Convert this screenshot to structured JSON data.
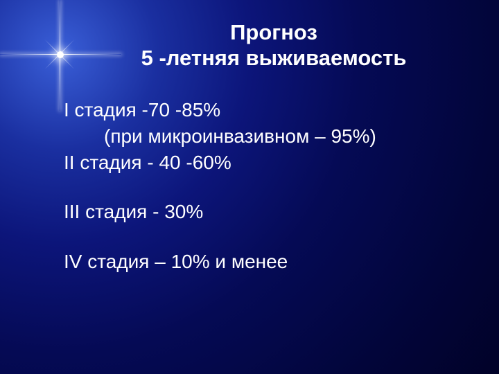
{
  "colors": {
    "text": "#ffffff",
    "bg_center": "#3a5fd8",
    "bg_edge": "#010228"
  },
  "title": {
    "line1": "Прогноз",
    "line2": "5 -летняя выживаемость",
    "font_size_pt": 23,
    "font_weight": "bold"
  },
  "body": {
    "font_size_pt": 21,
    "lines": {
      "l1": "I стадия -70 -85%",
      "l2": "(при микроинвазивном – 95%)",
      "l3": "II стадия - 40 -60%",
      "l4": "III стадия - 30%",
      "l5": "IV стадия – 10% и менее"
    }
  }
}
